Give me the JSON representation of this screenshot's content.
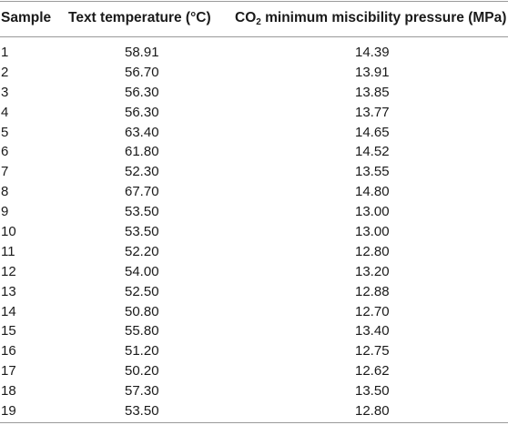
{
  "table": {
    "headers": {
      "sample": "Sample",
      "temperature": "Text temperature (°C)",
      "co2_prefix": "CO",
      "co2_sub": "2",
      "co2_suffix": " minimum miscibility pressure (MPa)"
    },
    "rows": [
      {
        "sample": "1",
        "temperature": "58.91",
        "pressure": "14.39"
      },
      {
        "sample": "2",
        "temperature": "56.70",
        "pressure": "13.91"
      },
      {
        "sample": "3",
        "temperature": "56.30",
        "pressure": "13.85"
      },
      {
        "sample": "4",
        "temperature": "56.30",
        "pressure": "13.77"
      },
      {
        "sample": "5",
        "temperature": "63.40",
        "pressure": "14.65"
      },
      {
        "sample": "6",
        "temperature": "61.80",
        "pressure": "14.52"
      },
      {
        "sample": "7",
        "temperature": "52.30",
        "pressure": "13.55"
      },
      {
        "sample": "8",
        "temperature": "67.70",
        "pressure": "14.80"
      },
      {
        "sample": "9",
        "temperature": "53.50",
        "pressure": "13.00"
      },
      {
        "sample": "10",
        "temperature": "53.50",
        "pressure": "13.00"
      },
      {
        "sample": "11",
        "temperature": "52.20",
        "pressure": "12.80"
      },
      {
        "sample": "12",
        "temperature": "54.00",
        "pressure": "13.20"
      },
      {
        "sample": "13",
        "temperature": "52.50",
        "pressure": "12.88"
      },
      {
        "sample": "14",
        "temperature": "50.80",
        "pressure": "12.70"
      },
      {
        "sample": "15",
        "temperature": "55.80",
        "pressure": "13.40"
      },
      {
        "sample": "16",
        "temperature": "51.20",
        "pressure": "12.75"
      },
      {
        "sample": "17",
        "temperature": "50.20",
        "pressure": "12.62"
      },
      {
        "sample": "18",
        "temperature": "57.30",
        "pressure": "13.50"
      },
      {
        "sample": "19",
        "temperature": "53.50",
        "pressure": "12.80"
      }
    ]
  }
}
